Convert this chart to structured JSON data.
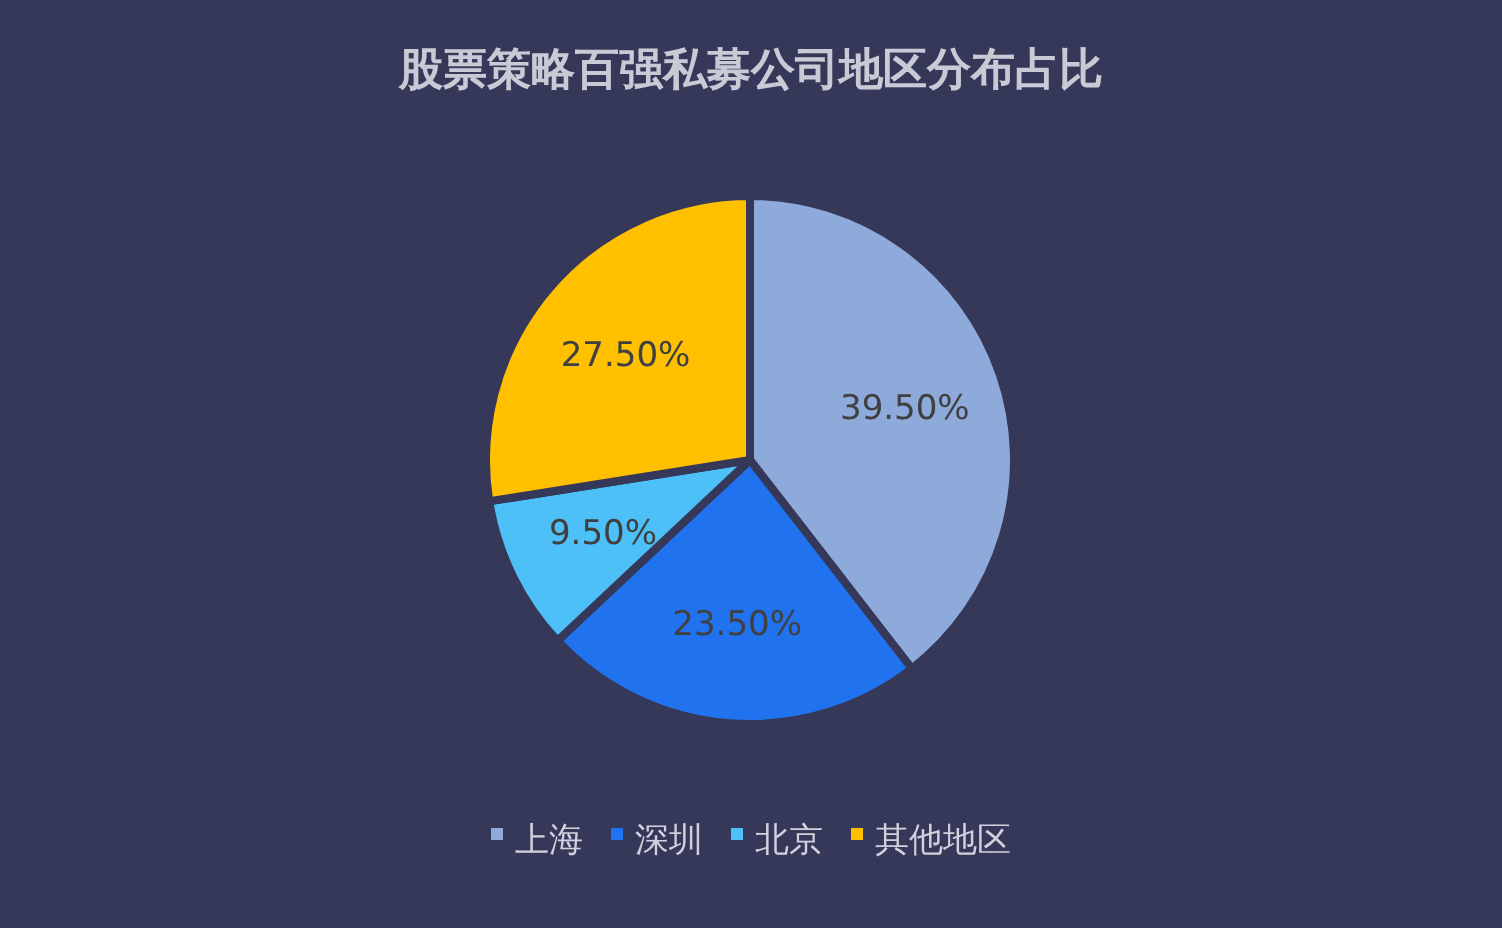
{
  "chart_data": {
    "type": "pie",
    "title": "股票策略百强私募公司地区分布占比",
    "categories": [
      "上海",
      "深圳",
      "北京",
      "其他地区"
    ],
    "values": [
      39.5,
      23.5,
      9.5,
      27.5
    ],
    "value_labels": [
      "39.50%",
      "23.50%",
      "9.50%",
      "27.50%"
    ],
    "colors": [
      "#8eaadb",
      "#2072ef",
      "#4dc0f7",
      "#ffc000"
    ],
    "legend": "bottom"
  }
}
